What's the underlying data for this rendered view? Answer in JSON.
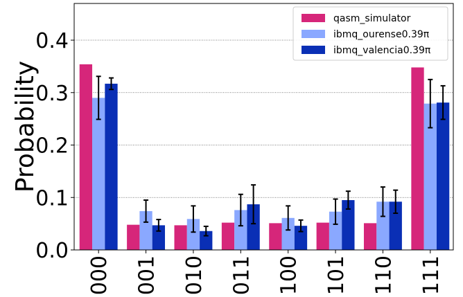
{
  "chart_data": {
    "type": "bar",
    "ylabel": "Probability",
    "xlabel": "",
    "ylim": [
      0,
      0.47
    ],
    "yticks": [
      "0.0",
      "0.1",
      "0.2",
      "0.3",
      "0.4"
    ],
    "grid": "horizontal dotted",
    "legend_position": "top-right",
    "categories": [
      "000",
      "001",
      "010",
      "011",
      "100",
      "101",
      "110",
      "111"
    ],
    "series": [
      {
        "name": "qasm_simulator",
        "color": "#d6267a",
        "values": [
          0.354,
          0.048,
          0.047,
          0.052,
          0.051,
          0.052,
          0.051,
          0.348
        ],
        "errors": null
      },
      {
        "name": "ibmq_ourense0.39π",
        "color": "#8aa8ff",
        "values": [
          0.29,
          0.074,
          0.059,
          0.076,
          0.061,
          0.073,
          0.092,
          0.279
        ],
        "errors": [
          0.041,
          0.021,
          0.025,
          0.03,
          0.023,
          0.024,
          0.028,
          0.046
        ]
      },
      {
        "name": "ibmq_valencia0.39π",
        "color": "#0a2fb5",
        "values": [
          0.317,
          0.047,
          0.036,
          0.087,
          0.046,
          0.095,
          0.092,
          0.281
        ],
        "errors": [
          0.011,
          0.011,
          0.009,
          0.037,
          0.011,
          0.017,
          0.022,
          0.032
        ]
      }
    ]
  }
}
